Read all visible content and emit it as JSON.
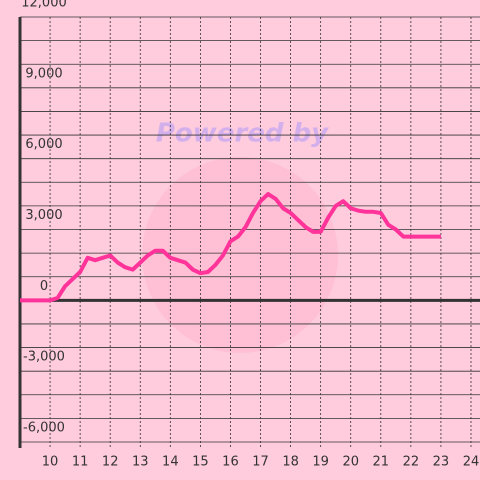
{
  "chart_data": {
    "type": "line",
    "watermark": "Powered by",
    "x": [
      9,
      9.5,
      10,
      10.25,
      10.5,
      10.75,
      11,
      11.25,
      11.5,
      11.75,
      12,
      12.25,
      12.5,
      12.75,
      13,
      13.25,
      13.5,
      13.75,
      14,
      14.25,
      14.5,
      14.75,
      15,
      15.25,
      15.5,
      15.75,
      16,
      16.25,
      16.5,
      16.75,
      17,
      17.25,
      17.5,
      17.75,
      18,
      18.25,
      18.5,
      18.75,
      19,
      19.25,
      19.5,
      19.75,
      20,
      20.25,
      20.5,
      20.75,
      21,
      21.25,
      21.5,
      21.75,
      22,
      22.5,
      23
    ],
    "series": [
      {
        "color": "#ff3399",
        "values": [
          0,
          0,
          0,
          100,
          600,
          900,
          1200,
          1800,
          1700,
          1800,
          1900,
          1600,
          1400,
          1300,
          1600,
          1900,
          2100,
          2100,
          1800,
          1700,
          1600,
          1300,
          1150,
          1200,
          1500,
          1900,
          2500,
          2700,
          3100,
          3700,
          4200,
          4500,
          4300,
          3900,
          3700,
          3400,
          3100,
          2900,
          2900,
          3500,
          4000,
          4200,
          3900,
          3800,
          3750,
          3750,
          3700,
          3200,
          3000,
          2700,
          2700,
          2700,
          2700
        ]
      }
    ],
    "xlim": [
      9,
      24.3
    ],
    "xticks": [
      10,
      11,
      12,
      13,
      14,
      15,
      16,
      17,
      18,
      19,
      20,
      21,
      22,
      23,
      24
    ],
    "ylim": [
      -6000,
      12000
    ],
    "yticks": [
      {
        "value": -6000,
        "label": "-6,000"
      },
      {
        "value": -3000,
        "label": "-3,000"
      },
      0,
      {
        "value": 3000,
        "label": "3,000"
      },
      {
        "value": 6000,
        "label": "6,000"
      },
      {
        "value": 9000,
        "label": "9,000"
      },
      {
        "value": 12000,
        "label": "12,000"
      }
    ],
    "grid": true
  }
}
